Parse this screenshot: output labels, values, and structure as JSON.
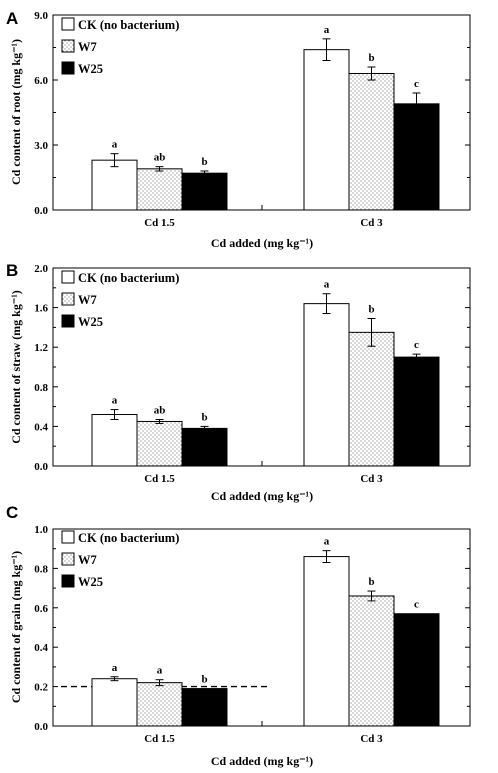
{
  "legend_labels": [
    "CK (no bacterium)",
    "W7",
    "W25"
  ],
  "xlabel": "Cd added (mg kg⁻¹)",
  "chart_data": [
    {
      "type": "bar",
      "panel": "A",
      "ylabel": "Cd content of root (mg kg⁻¹)",
      "ylim": [
        0,
        9.0
      ],
      "yticks": [
        "0.0",
        "3.0",
        "6.0",
        "9.0"
      ],
      "categories": [
        "Cd 1.5",
        "Cd 3"
      ],
      "series": [
        {
          "name": "CK (no bacterium)",
          "values": [
            2.3,
            7.4
          ],
          "errors": [
            0.3,
            0.5
          ],
          "letters": [
            "a",
            "a"
          ]
        },
        {
          "name": "W7",
          "values": [
            1.9,
            6.3
          ],
          "errors": [
            0.1,
            0.3
          ],
          "letters": [
            "ab",
            "b"
          ]
        },
        {
          "name": "W25",
          "values": [
            1.7,
            4.9
          ],
          "errors": [
            0.1,
            0.5
          ],
          "letters": [
            "b",
            "c"
          ]
        }
      ]
    },
    {
      "type": "bar",
      "panel": "B",
      "ylabel": "Cd content of straw (mg kg⁻¹)",
      "ylim": [
        0,
        2.0
      ],
      "yticks": [
        "0.0",
        "0.4",
        "0.8",
        "1.2",
        "1.6",
        "2.0"
      ],
      "categories": [
        "Cd 1.5",
        "Cd 3"
      ],
      "series": [
        {
          "name": "CK (no bacterium)",
          "values": [
            0.52,
            1.64
          ],
          "errors": [
            0.05,
            0.1
          ],
          "letters": [
            "a",
            "a"
          ]
        },
        {
          "name": "W7",
          "values": [
            0.45,
            1.35
          ],
          "errors": [
            0.02,
            0.14
          ],
          "letters": [
            "ab",
            "b"
          ]
        },
        {
          "name": "W25",
          "values": [
            0.38,
            1.1
          ],
          "errors": [
            0.02,
            0.03
          ],
          "letters": [
            "b",
            "c"
          ]
        }
      ]
    },
    {
      "type": "bar",
      "panel": "C",
      "ylabel": "Cd content of grain (mg kg⁻¹)",
      "ylim": [
        0,
        1.0
      ],
      "yticks": [
        "0.0",
        "0.2",
        "0.4",
        "0.6",
        "0.8",
        "1.0"
      ],
      "categories": [
        "Cd 1.5",
        "Cd 3"
      ],
      "reference_line": {
        "y": 0.2,
        "span_category": "Cd 1.5",
        "style": "dashed"
      },
      "series": [
        {
          "name": "CK (no bacterium)",
          "values": [
            0.24,
            0.86
          ],
          "errors": [
            0.01,
            0.03
          ],
          "letters": [
            "a",
            "a"
          ]
        },
        {
          "name": "W7",
          "values": [
            0.22,
            0.66
          ],
          "errors": [
            0.015,
            0.025
          ],
          "letters": [
            "a",
            "b"
          ]
        },
        {
          "name": "W25",
          "values": [
            0.19,
            0.57
          ],
          "errors": [
            0,
            0
          ],
          "letters": [
            "b",
            "c"
          ]
        }
      ]
    }
  ]
}
